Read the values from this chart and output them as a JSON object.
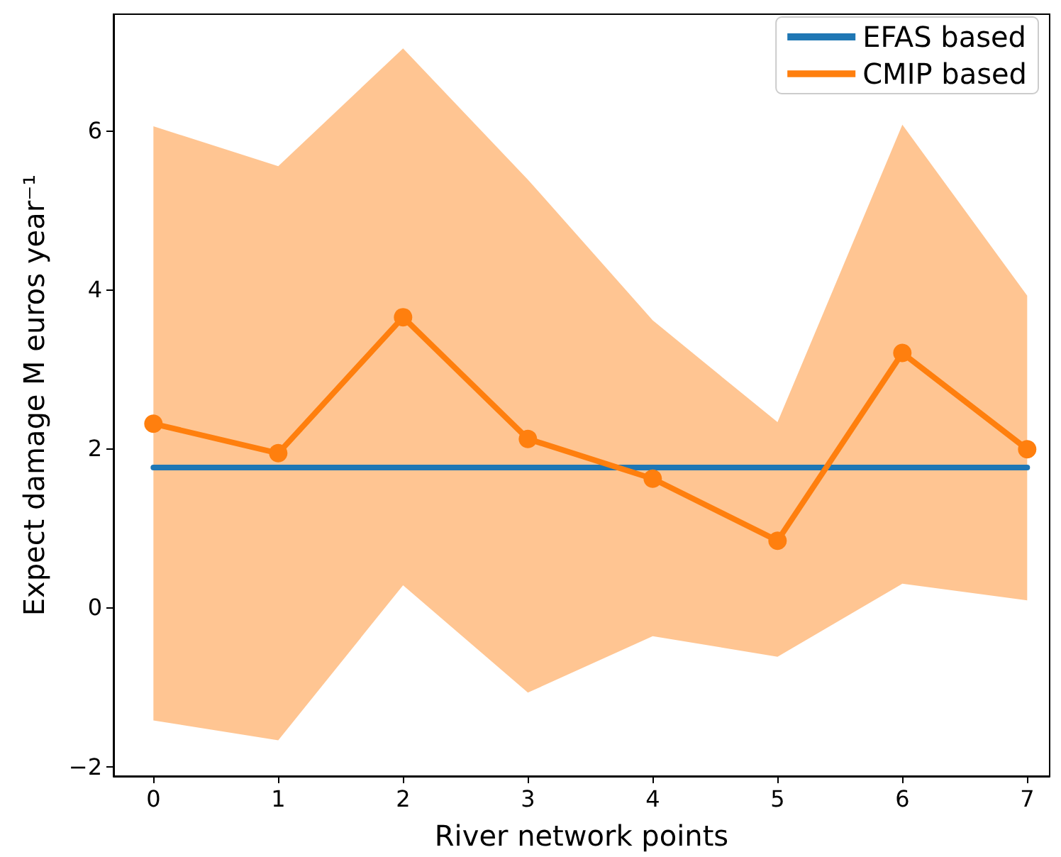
{
  "chart_data": {
    "type": "line",
    "xlabel": "River network points",
    "ylabel": "Expect damage M euros year⁻¹",
    "x": [
      0,
      1,
      2,
      3,
      4,
      5,
      6,
      7
    ],
    "series": [
      {
        "name": "EFAS based",
        "color": "#1f77b4",
        "marker": "none",
        "values": [
          1.76,
          1.76,
          1.76,
          1.76,
          1.76,
          1.76,
          1.76,
          1.76
        ]
      },
      {
        "name": "CMIP based",
        "color": "#ff7f0e",
        "marker": "circle",
        "values": [
          2.31,
          1.94,
          3.65,
          2.12,
          1.62,
          0.84,
          3.2,
          1.99
        ],
        "lower": [
          -1.42,
          -1.67,
          0.28,
          -1.07,
          -0.36,
          -0.62,
          0.3,
          0.09
        ],
        "upper": [
          6.05,
          5.55,
          7.03,
          5.38,
          3.61,
          2.33,
          6.07,
          3.92
        ]
      }
    ],
    "xlim": [
      -0.32,
      7.18
    ],
    "xticks": [
      0,
      1,
      2,
      3,
      4,
      5,
      6,
      7
    ],
    "ylim": [
      -2.12,
      7.46
    ],
    "yticks": [
      {
        "value": -2,
        "label": "−2"
      },
      0,
      2,
      4,
      6
    ],
    "legend": "top right"
  }
}
